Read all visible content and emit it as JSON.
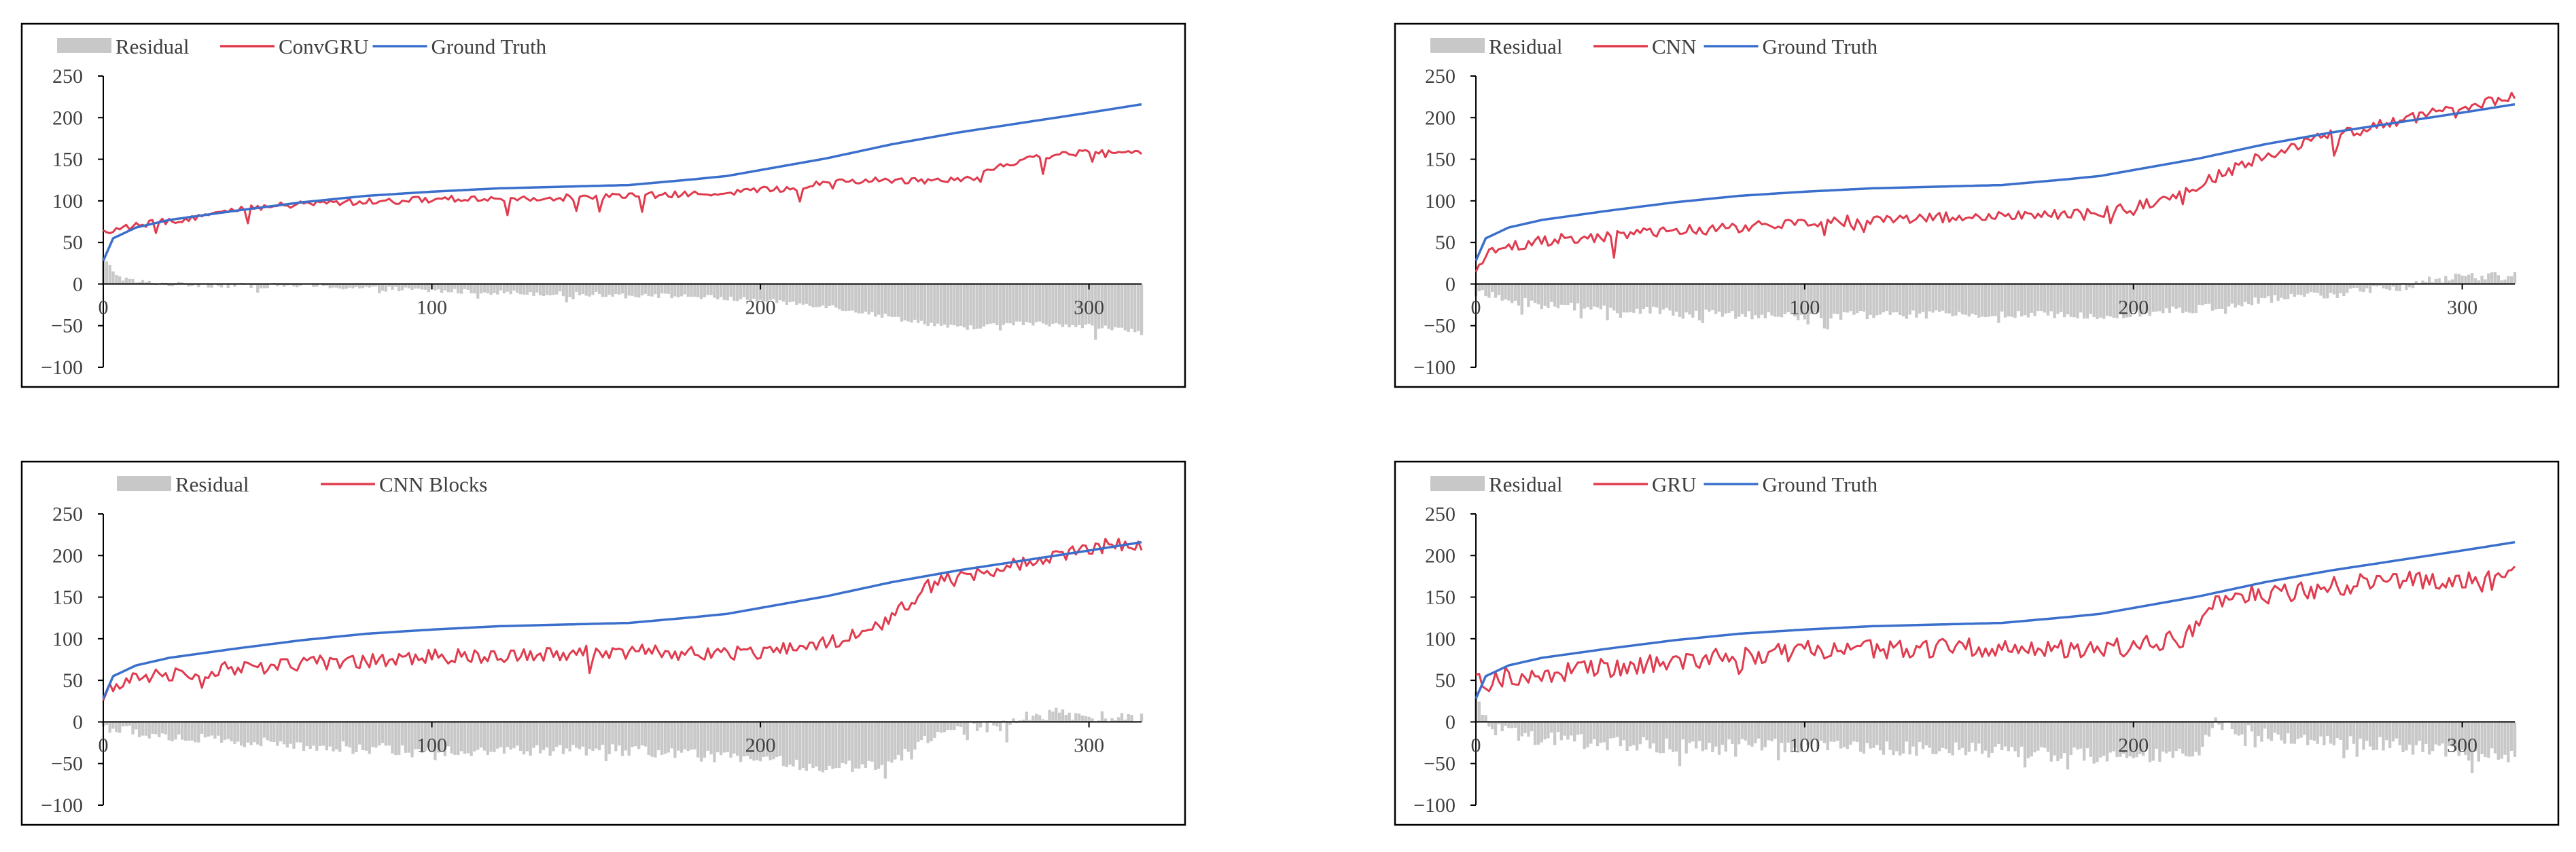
{
  "colors": {
    "residual": "#c8c8c8",
    "model": "#e03c4f",
    "truth": "#3b6fcc",
    "axis": "#000000",
    "text": "#404040"
  },
  "chart_data": [
    {
      "type": "bar+line",
      "title": "",
      "model_name": "ConvGRU",
      "legend": [
        "Residual",
        "ConvGRU",
        "Ground Truth"
      ],
      "xlim": [
        0,
        316
      ],
      "ylim": [
        -100,
        250
      ],
      "x_ticks": [
        0,
        100,
        200,
        300
      ],
      "y_ticks": [
        250,
        200,
        150,
        100,
        50,
        0,
        -50,
        -100
      ],
      "ground_truth": {
        "x": [
          0,
          3,
          10,
          20,
          40,
          60,
          80,
          100,
          120,
          140,
          160,
          180,
          190,
          200,
          220,
          240,
          260,
          280,
          300,
          316
        ],
        "y": [
          28,
          55,
          68,
          77,
          88,
          98,
          106,
          111,
          115,
          117,
          119,
          126,
          130,
          137,
          151,
          168,
          182,
          194,
          206,
          216
        ]
      },
      "model": {
        "x": [
          0,
          5,
          10,
          20,
          30,
          40,
          50,
          60,
          70,
          80,
          90,
          100,
          120,
          140,
          160,
          180,
          200,
          215,
          220,
          250,
          265,
          270,
          275,
          280,
          290,
          300,
          310,
          316
        ],
        "y": [
          63,
          66,
          70,
          76,
          82,
          88,
          93,
          96,
          98,
          99,
          100,
          102,
          103,
          104,
          106,
          108,
          113,
          117,
          124,
          125,
          128,
          138,
          145,
          149,
          156,
          158,
          157,
          158
        ]
      },
      "residual": {
        "x": [
          0,
          5,
          10,
          20,
          40,
          60,
          80,
          100,
          120,
          140,
          160,
          180,
          200,
          220,
          240,
          260,
          280,
          300,
          316
        ],
        "y": [
          30,
          8,
          3,
          0,
          -2,
          -2,
          -5,
          -8,
          -10,
          -12,
          -13,
          -15,
          -20,
          -26,
          -40,
          -53,
          -47,
          -50,
          -58
        ]
      }
    },
    {
      "type": "bar+line",
      "title": "",
      "model_name": "CNN",
      "legend": [
        "Residual",
        "CNN",
        "Ground Truth"
      ],
      "xlim": [
        0,
        316
      ],
      "ylim": [
        -100,
        250
      ],
      "x_ticks": [
        0,
        100,
        200,
        300
      ],
      "y_ticks": [
        250,
        200,
        150,
        100,
        50,
        0,
        -50,
        -100
      ],
      "ground_truth": {
        "x": [
          0,
          3,
          10,
          20,
          40,
          60,
          80,
          100,
          120,
          140,
          160,
          180,
          190,
          200,
          220,
          240,
          260,
          280,
          300,
          316
        ],
        "y": [
          28,
          55,
          68,
          77,
          88,
          98,
          106,
          111,
          115,
          117,
          119,
          126,
          130,
          137,
          151,
          168,
          182,
          194,
          206,
          216
        ]
      },
      "model": {
        "x": [
          0,
          3,
          10,
          20,
          40,
          60,
          80,
          100,
          120,
          140,
          160,
          180,
          190,
          200,
          210,
          220,
          230,
          240,
          250,
          260,
          270,
          280,
          290,
          300,
          310,
          316
        ],
        "y": [
          18,
          38,
          46,
          52,
          58,
          63,
          68,
          73,
          78,
          80,
          82,
          82,
          86,
          92,
          100,
          120,
          138,
          155,
          168,
          178,
          186,
          195,
          205,
          212,
          222,
          224
        ]
      },
      "residual": {
        "x": [
          0,
          5,
          10,
          20,
          40,
          60,
          80,
          100,
          120,
          140,
          160,
          180,
          200,
          220,
          240,
          260,
          280,
          290,
          300,
          316
        ],
        "y": [
          -10,
          -15,
          -20,
          -25,
          -30,
          -34,
          -38,
          -38,
          -37,
          -37,
          -37,
          -38,
          -35,
          -30,
          -20,
          -12,
          -5,
          5,
          8,
          10
        ]
      }
    },
    {
      "type": "bar+line",
      "title": "",
      "model_name": "CNN Blocks",
      "legend": [
        "Residual",
        "CNN Blocks"
      ],
      "xlim": [
        0,
        316
      ],
      "ylim": [
        -100,
        250
      ],
      "x_ticks": [
        0,
        100,
        200,
        300
      ],
      "y_ticks": [
        250,
        200,
        150,
        100,
        50,
        0,
        -50,
        -100
      ],
      "ground_truth": {
        "x": [
          0,
          3,
          10,
          20,
          40,
          60,
          80,
          100,
          120,
          140,
          160,
          180,
          190,
          200,
          220,
          240,
          260,
          280,
          300,
          316
        ],
        "y": [
          28,
          55,
          68,
          77,
          88,
          98,
          106,
          111,
          115,
          117,
          119,
          126,
          130,
          137,
          151,
          168,
          182,
          194,
          206,
          216
        ]
      },
      "model": {
        "x": [
          0,
          3,
          8,
          20,
          40,
          60,
          80,
          100,
          120,
          140,
          160,
          180,
          200,
          215,
          225,
          235,
          245,
          250,
          255,
          265,
          275,
          285,
          295,
          305,
          316
        ],
        "y": [
          20,
          45,
          52,
          58,
          64,
          70,
          74,
          78,
          80,
          83,
          85,
          82,
          85,
          90,
          100,
          115,
          140,
          160,
          170,
          178,
          188,
          196,
          205,
          212,
          215
        ]
      },
      "residual": {
        "x": [
          0,
          5,
          10,
          20,
          40,
          60,
          80,
          100,
          120,
          140,
          160,
          180,
          200,
          220,
          240,
          250,
          260,
          270,
          280,
          290,
          300,
          316
        ],
        "y": [
          -5,
          -10,
          -12,
          -18,
          -24,
          -28,
          -32,
          -34,
          -35,
          -34,
          -34,
          -40,
          -45,
          -55,
          -50,
          -20,
          -10,
          -5,
          5,
          10,
          6,
          5
        ]
      }
    },
    {
      "type": "bar+line",
      "title": "",
      "model_name": "GRU",
      "legend": [
        "Residual",
        "GRU",
        "Ground Truth"
      ],
      "xlim": [
        0,
        316
      ],
      "ylim": [
        -100,
        250
      ],
      "x_ticks": [
        0,
        100,
        200,
        300
      ],
      "y_ticks": [
        250,
        200,
        150,
        100,
        50,
        0,
        -50,
        -100
      ],
      "ground_truth": {
        "x": [
          0,
          3,
          10,
          20,
          40,
          60,
          80,
          100,
          120,
          140,
          160,
          180,
          190,
          200,
          220,
          240,
          260,
          280,
          300,
          316
        ],
        "y": [
          28,
          55,
          68,
          77,
          88,
          98,
          106,
          111,
          115,
          117,
          119,
          126,
          130,
          137,
          151,
          168,
          182,
          194,
          206,
          216
        ]
      },
      "model": {
        "x": [
          0,
          3,
          10,
          20,
          40,
          60,
          80,
          100,
          120,
          140,
          160,
          180,
          200,
          215,
          225,
          235,
          245,
          255,
          265,
          275,
          285,
          295,
          305,
          316
        ],
        "y": [
          60,
          45,
          55,
          58,
          65,
          72,
          80,
          86,
          88,
          88,
          90,
          88,
          90,
          100,
          150,
          152,
          155,
          160,
          165,
          170,
          172,
          172,
          168,
          175
        ]
      },
      "residual": {
        "x": [
          0,
          5,
          10,
          20,
          40,
          60,
          80,
          100,
          120,
          140,
          160,
          180,
          200,
          220,
          225,
          230,
          240,
          260,
          280,
          300,
          316
        ],
        "y": [
          30,
          -10,
          -15,
          -20,
          -25,
          -30,
          -30,
          -28,
          -30,
          -32,
          -34,
          -40,
          -42,
          -40,
          5,
          -10,
          -15,
          -25,
          -28,
          -38,
          -40
        ]
      }
    }
  ]
}
